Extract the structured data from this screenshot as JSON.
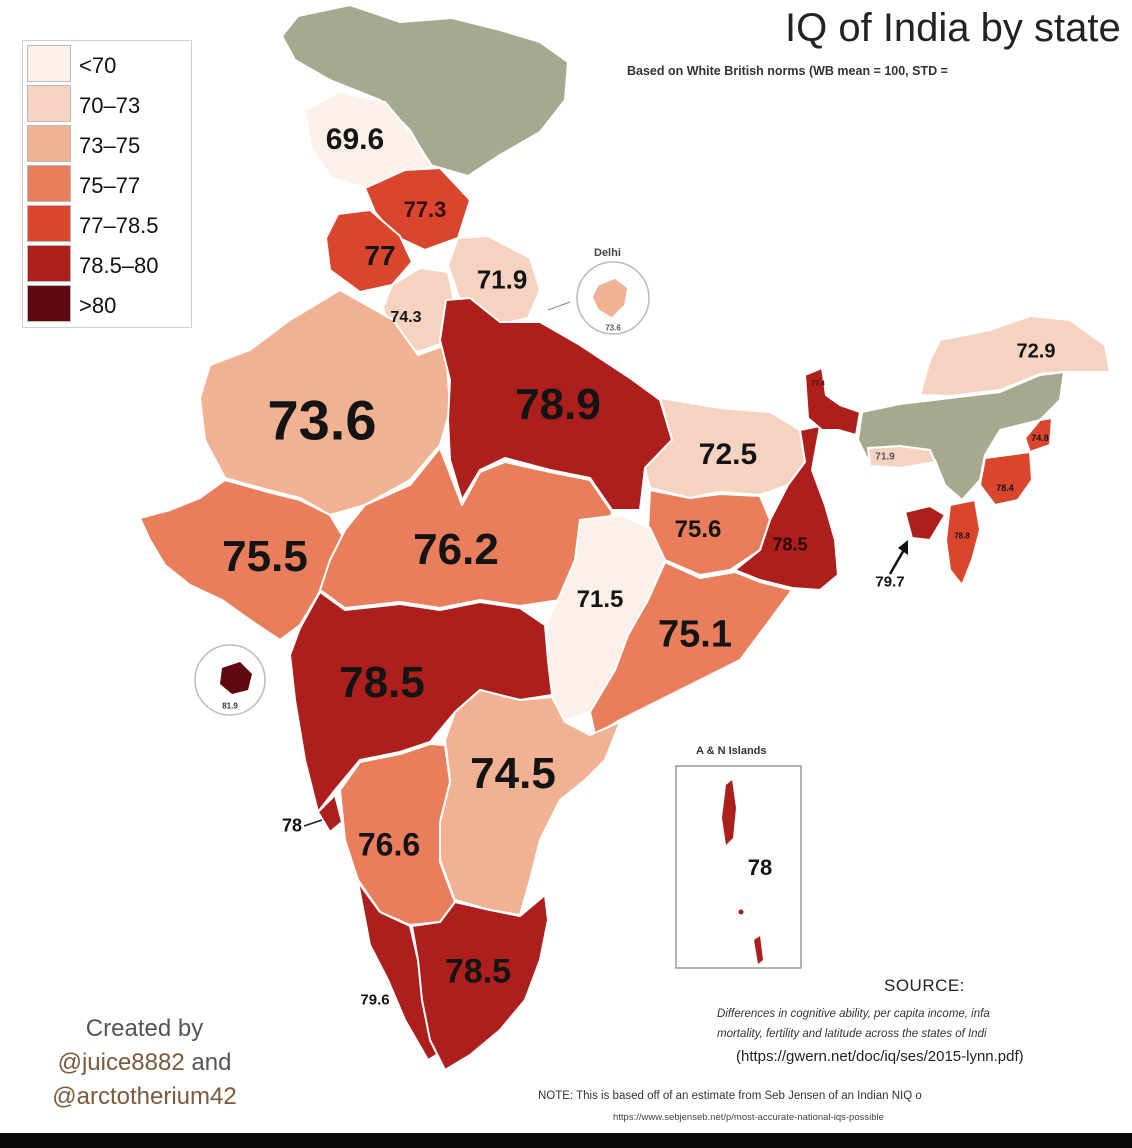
{
  "title": "IQ of India by state",
  "subtitle": "Based on White British norms (WB mean = 100, STD =",
  "legend": [
    {
      "label": "<70",
      "color": "#fbf0ea"
    },
    {
      "label": "70–73",
      "color": "#f6d3c1"
    },
    {
      "label": "73–75",
      "color": "#f1b193"
    },
    {
      "label": "75–77",
      "color": "#e97e5d"
    },
    {
      "label": "77–78.5",
      "color": "#d9452d"
    },
    {
      "label": "78.5–80",
      "color": "#ad1f1c"
    },
    {
      "label": ">80",
      "color": "#5e0810"
    }
  ],
  "colors": {
    "no_data": "#a6a88f",
    "border": "#ffffff",
    "lt70": "#fbf0ea",
    "c70_73": "#f6d3c1",
    "c73_75": "#f1b193",
    "c75_77": "#e97e5d",
    "c77_785": "#d9452d",
    "c785_80": "#ad1f1c",
    "gt80": "#5e0810"
  },
  "regions": {
    "jk": {
      "value": "69.6"
    },
    "himachal": {
      "value": "77.3"
    },
    "punjab": {
      "value": "77"
    },
    "uttarakhand": {
      "value": "71.9"
    },
    "haryana": {
      "value": "74.3"
    },
    "rajasthan": {
      "value": "73.6"
    },
    "up": {
      "value": "78.9"
    },
    "bihar": {
      "value": "72.5"
    },
    "gujarat": {
      "value": "75.5"
    },
    "mp": {
      "value": "76.2"
    },
    "jharkhand": {
      "value": "75.6"
    },
    "wb": {
      "value": "78.5"
    },
    "chhattisgarh": {
      "value": "71.5"
    },
    "odisha": {
      "value": "75.1"
    },
    "maharashtra": {
      "value": "78.5"
    },
    "telangana_ap": {
      "value": "74.5"
    },
    "karnataka": {
      "value": "76.6"
    },
    "goa": {
      "value": "78"
    },
    "tamilnadu": {
      "value": "78.5"
    },
    "kerala": {
      "value": "79.6"
    },
    "arunachal": {
      "value": "72.9"
    },
    "meghalaya": {
      "value": "71.9"
    },
    "nagaland": {
      "value": "74.8"
    },
    "manipur": {
      "value": "78.4"
    },
    "mizoram": {
      "value": "78.8"
    },
    "tripura": {
      "value": "79.7"
    },
    "sikkim": {
      "value": "77.4"
    },
    "delhi": {
      "value": "73.6"
    },
    "daman": {
      "value": "81.9"
    },
    "andaman": {
      "value": "78"
    }
  },
  "insets": {
    "delhi_title": "Delhi",
    "andaman_title": "A & N Islands"
  },
  "credit": {
    "line1": "Created by",
    "handle1": "@juice8882",
    "and": "and",
    "handle2": "@arctotherium42"
  },
  "source": {
    "heading": "SOURCE:",
    "line1": "Differences in cognitive ability, per capita income, infa",
    "line2": "mortality, fertility and latitude across the states of Indi",
    "url": "(https://gwern.net/doc/iq/ses/2015-lynn.pdf)"
  },
  "note": {
    "text": "NOTE: This is based off of an estimate from Seb Jensen of an Indian NIQ o",
    "url": "https://www.sebjenseb.net/p/most-accurate-national-iqs-possible"
  }
}
